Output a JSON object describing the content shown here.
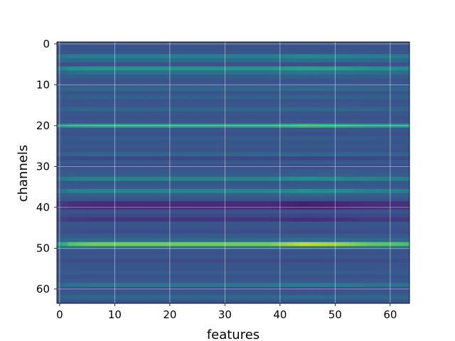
{
  "chart_data": {
    "type": "heatmap",
    "title": "",
    "xlabel": "features",
    "ylabel": "channels",
    "xlim": [
      -0.5,
      63.5
    ],
    "ylim": [
      63.5,
      -0.5
    ],
    "n_rows": 64,
    "n_cols": 64,
    "x_ticks": [
      0,
      10,
      20,
      30,
      40,
      50,
      60
    ],
    "y_ticks": [
      0,
      10,
      20,
      30,
      40,
      50,
      60
    ],
    "colormap": "viridis",
    "grid": true,
    "vmin": 0,
    "vmax": 1,
    "row_base_values": [
      0.26,
      0.26,
      0.27,
      0.43,
      0.35,
      0.25,
      0.52,
      0.37,
      0.3,
      0.26,
      0.28,
      0.34,
      0.27,
      0.31,
      0.26,
      0.28,
      0.33,
      0.27,
      0.26,
      0.28,
      0.58,
      0.27,
      0.25,
      0.29,
      0.27,
      0.28,
      0.26,
      0.33,
      0.22,
      0.29,
      0.24,
      0.28,
      0.3,
      0.45,
      0.27,
      0.29,
      0.46,
      0.31,
      0.26,
      0.13,
      0.12,
      0.26,
      0.22,
      0.16,
      0.27,
      0.26,
      0.24,
      0.29,
      0.35,
      0.78,
      0.33,
      0.26,
      0.27,
      0.23,
      0.27,
      0.27,
      0.29,
      0.26,
      0.28,
      0.4,
      0.24,
      0.27,
      0.34,
      0.26
    ],
    "column_modulation": [
      {
        "col": 0,
        "factor": 0.6
      },
      {
        "col": 2,
        "factor": 0.9
      },
      {
        "col": 6,
        "factor": 1.0
      },
      {
        "col": 38,
        "factor": 1.0
      },
      {
        "col": 44,
        "factor": 1.25
      },
      {
        "col": 50,
        "factor": 1.15
      },
      {
        "col": 56,
        "factor": 0.95
      },
      {
        "col": 63,
        "factor": 0.85
      }
    ]
  }
}
